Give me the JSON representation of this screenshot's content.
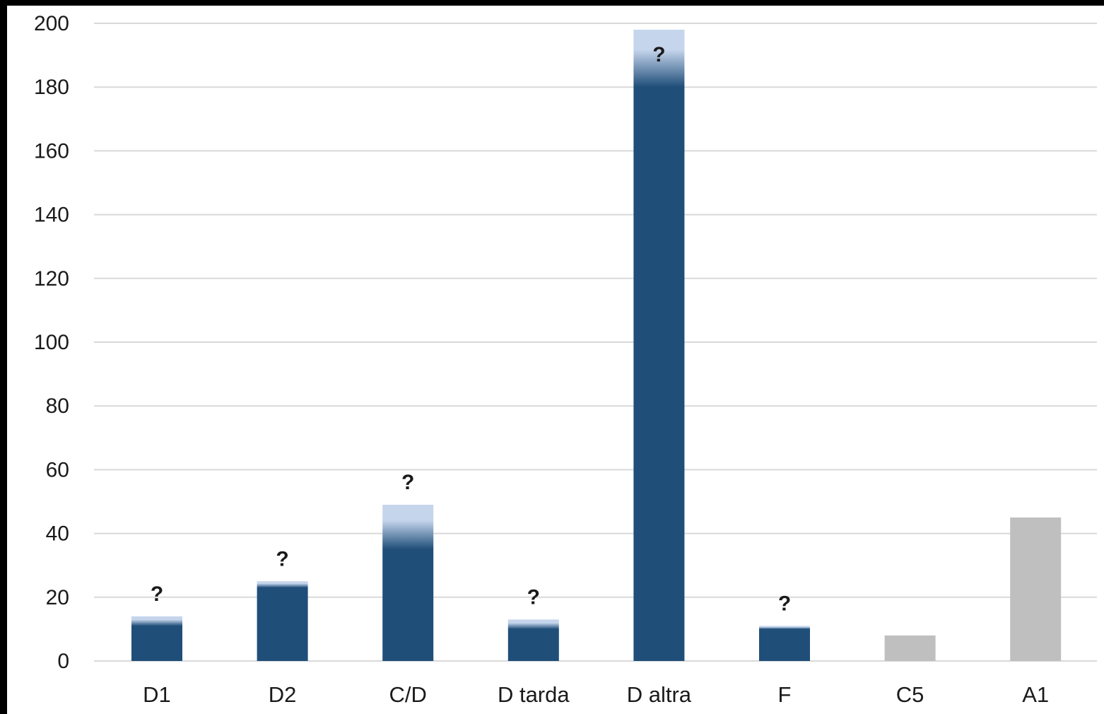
{
  "chart_data": {
    "type": "bar",
    "categories": [
      "D1",
      "D2",
      "C/D",
      "D tarda",
      "D altra",
      "F",
      "C5",
      "A1"
    ],
    "values": [
      14,
      25,
      49,
      13,
      198,
      11,
      8,
      45
    ],
    "uncertain_portion": [
      3,
      2,
      14,
      3,
      18,
      1,
      0,
      0
    ],
    "uncertainty_marker": "?",
    "marked": [
      true,
      true,
      true,
      true,
      true,
      true,
      false,
      false
    ],
    "bar_colors": [
      "#1f4e79",
      "#1f4e79",
      "#1f4e79",
      "#1f4e79",
      "#1f4e79",
      "#1f4e79",
      "#bfbfbf",
      "#bfbfbf"
    ],
    "uncertain_fade_color": "#c5d5ec",
    "yticks": [
      0,
      20,
      40,
      60,
      80,
      100,
      120,
      140,
      160,
      180,
      200
    ],
    "ylim": [
      0,
      200
    ],
    "grid": true,
    "gridline_color": "#d9d9d9",
    "legend": "none",
    "title": "",
    "xlabel": "",
    "ylabel": ""
  }
}
